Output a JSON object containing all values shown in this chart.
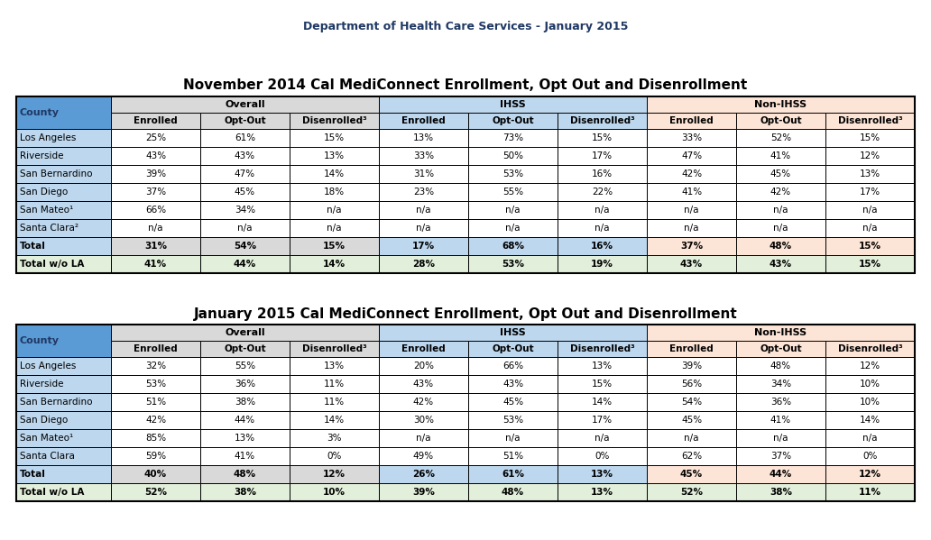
{
  "page_title": "Department of Health Care Services - January 2015",
  "table1_title": "November 2014 Cal MediConnect Enrollment, Opt Out and Disenrollment",
  "table2_title": "January 2015 Cal MediConnect Enrollment, Opt Out and Disenrollment",
  "county_col": "County",
  "table1_counties": [
    "Los Angeles",
    "Riverside",
    "San Bernardino",
    "San Diego",
    "San Mateo¹",
    "Santa Clara²"
  ],
  "table2_counties": [
    "Los Angeles",
    "Riverside",
    "San Bernardino",
    "San Diego",
    "San Mateo¹",
    "Santa Clara"
  ],
  "col_headers": [
    "Enrolled",
    "Opt-Out",
    "Disenrolled³",
    "Enrolled",
    "Opt-Out",
    "Disenrolled³",
    "Enrolled",
    "Opt-Out",
    "Disenrolled³"
  ],
  "table1_data": [
    [
      "25%",
      "61%",
      "15%",
      "13%",
      "73%",
      "15%",
      "33%",
      "52%",
      "15%"
    ],
    [
      "43%",
      "43%",
      "13%",
      "33%",
      "50%",
      "17%",
      "47%",
      "41%",
      "12%"
    ],
    [
      "39%",
      "47%",
      "14%",
      "31%",
      "53%",
      "16%",
      "42%",
      "45%",
      "13%"
    ],
    [
      "37%",
      "45%",
      "18%",
      "23%",
      "55%",
      "22%",
      "41%",
      "42%",
      "17%"
    ],
    [
      "66%",
      "34%",
      "n/a",
      "n/a",
      "n/a",
      "n/a",
      "n/a",
      "n/a",
      "n/a"
    ],
    [
      "n/a",
      "n/a",
      "n/a",
      "n/a",
      "n/a",
      "n/a",
      "n/a",
      "n/a",
      "n/a"
    ]
  ],
  "table1_total": [
    "31%",
    "54%",
    "15%",
    "17%",
    "68%",
    "16%",
    "37%",
    "48%",
    "15%"
  ],
  "table1_total_wola": [
    "41%",
    "44%",
    "14%",
    "28%",
    "53%",
    "19%",
    "43%",
    "43%",
    "15%"
  ],
  "table2_data": [
    [
      "32%",
      "55%",
      "13%",
      "20%",
      "66%",
      "13%",
      "39%",
      "48%",
      "12%"
    ],
    [
      "53%",
      "36%",
      "11%",
      "43%",
      "43%",
      "15%",
      "56%",
      "34%",
      "10%"
    ],
    [
      "51%",
      "38%",
      "11%",
      "42%",
      "45%",
      "14%",
      "54%",
      "36%",
      "10%"
    ],
    [
      "42%",
      "44%",
      "14%",
      "30%",
      "53%",
      "17%",
      "45%",
      "41%",
      "14%"
    ],
    [
      "85%",
      "13%",
      "3%",
      "n/a",
      "n/a",
      "n/a",
      "n/a",
      "n/a",
      "n/a"
    ],
    [
      "59%",
      "41%",
      "0%",
      "49%",
      "51%",
      "0%",
      "62%",
      "37%",
      "0%"
    ]
  ],
  "table2_total": [
    "40%",
    "48%",
    "12%",
    "26%",
    "61%",
    "13%",
    "45%",
    "44%",
    "12%"
  ],
  "table2_total_wola": [
    "52%",
    "38%",
    "10%",
    "39%",
    "48%",
    "13%",
    "52%",
    "38%",
    "11%"
  ],
  "colors": {
    "header_blue": "#5B9BD5",
    "header_light_blue": "#BDD7EE",
    "header_orange": "#F4B183",
    "header_light_orange": "#FCE4D6",
    "county_blue": "#BDD7EE",
    "total_wola_green": "#E2EFDA",
    "overall_gray": "#D9D9D9",
    "row_white": "#FFFFFF",
    "text_dark": "#1F3864",
    "text_black": "#000000"
  },
  "page_title_fontsize": 9,
  "table_title_fontsize": 11,
  "header_fontsize": 8,
  "data_fontsize": 7.5
}
